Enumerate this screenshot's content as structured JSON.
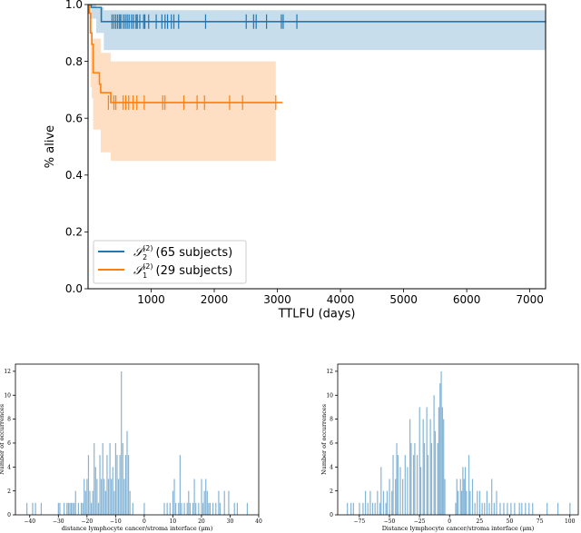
{
  "chart_data": [
    {
      "type": "line",
      "subtype": "kaplan-meier",
      "xlabel": "TTLFU (days)",
      "ylabel": "% alive",
      "xlim": [
        0,
        7250
      ],
      "ylim": [
        0,
        1
      ],
      "xticks": [
        1000,
        2000,
        3000,
        4000,
        5000,
        6000,
        7000
      ],
      "yticks": [
        0.0,
        0.2,
        0.4,
        0.6,
        0.8,
        1.0
      ],
      "legend_placement": "lower-left",
      "series": [
        {
          "name": "𝒮₂⁽²⁾ (65 subjects)",
          "symbol": "𝒮",
          "sub": "2",
          "sup": "(2)",
          "text": "(65 subjects)",
          "color": "#1f77b4",
          "steps": [
            [
              0,
              1.0
            ],
            [
              50,
              0.99
            ],
            [
              210,
              0.94
            ],
            [
              7250,
              0.94
            ]
          ],
          "ci": [
            [
              0,
              1.0,
              1.0
            ],
            [
              50,
              1.0,
              0.95
            ],
            [
              130,
              0.99,
              0.9
            ],
            [
              250,
              0.98,
              0.84
            ],
            [
              7250,
              0.98,
              0.84
            ]
          ],
          "censored": [
            380,
            410,
            440,
            470,
            500,
            520,
            560,
            590,
            620,
            650,
            690,
            720,
            760,
            780,
            820,
            880,
            900,
            960,
            1080,
            1170,
            1220,
            1260,
            1320,
            1360,
            1435,
            1862,
            2506,
            2623,
            2664,
            2828,
            3063,
            3092,
            3309
          ]
        },
        {
          "name": "𝒮₁⁽²⁾ (29 subjects)",
          "symbol": "𝒮",
          "sub": "1",
          "sup": "(2)",
          "text": "(29 subjects)",
          "color": "#ff7f0e",
          "steps": [
            [
              0,
              1.0
            ],
            [
              20,
              0.97
            ],
            [
              40,
              0.9
            ],
            [
              60,
              0.86
            ],
            [
              80,
              0.76
            ],
            [
              180,
              0.72
            ],
            [
              200,
              0.69
            ],
            [
              360,
              0.655
            ],
            [
              3080,
              0.655
            ]
          ],
          "ci": [
            [
              20,
              1.0,
              0.9
            ],
            [
              40,
              0.97,
              0.71
            ],
            [
              60,
              0.88,
              0.67
            ],
            [
              80,
              0.88,
              0.56
            ],
            [
              200,
              0.83,
              0.48
            ],
            [
              360,
              0.8,
              0.45
            ],
            [
              2975,
              0.8,
              0.45
            ]
          ],
          "censored": [
            322,
            410,
            440,
            557,
            598,
            644,
            714,
            773,
            890,
            1183,
            1218,
            1517,
            1728,
            1845,
            2243,
            2448,
            2975
          ]
        }
      ]
    },
    {
      "type": "bar",
      "subtype": "histogram",
      "color": "#1f77b4",
      "xlabel": "distance lymphocyte  cancer/stroma interface (μm)",
      "ylabel": "Number of occurrences",
      "xlim": [
        -45,
        40
      ],
      "ylim": [
        0,
        12.6
      ],
      "xticks": [
        -40,
        -30,
        -20,
        -10,
        0,
        10,
        20,
        30,
        40
      ],
      "yticks": [
        0,
        2,
        4,
        6,
        8,
        10,
        12
      ],
      "bars": [
        [
          -41,
          1
        ],
        [
          -39,
          1
        ],
        [
          -38,
          1
        ],
        [
          -36,
          1
        ],
        [
          -30,
          1
        ],
        [
          -29.5,
          1
        ],
        [
          -28,
          1
        ],
        [
          -27,
          1
        ],
        [
          -26.5,
          1
        ],
        [
          -26,
          1
        ],
        [
          -25.5,
          1
        ],
        [
          -25,
          1
        ],
        [
          -24.5,
          1
        ],
        [
          -24,
          2
        ],
        [
          -23,
          1
        ],
        [
          -22,
          1
        ],
        [
          -21.5,
          1
        ],
        [
          -21,
          3
        ],
        [
          -20.5,
          2
        ],
        [
          -20,
          3
        ],
        [
          -19.5,
          5
        ],
        [
          -19,
          2
        ],
        [
          -18.5,
          1
        ],
        [
          -18,
          2
        ],
        [
          -17.5,
          6
        ],
        [
          -17,
          4
        ],
        [
          -16.5,
          3
        ],
        [
          -16,
          1
        ],
        [
          -15.5,
          5
        ],
        [
          -15,
          3
        ],
        [
          -14.5,
          6
        ],
        [
          -14,
          3
        ],
        [
          -13.5,
          2
        ],
        [
          -13,
          5
        ],
        [
          -12.5,
          3
        ],
        [
          -12,
          6
        ],
        [
          -11.5,
          3
        ],
        [
          -11,
          4
        ],
        [
          -10.5,
          2
        ],
        [
          -10,
          6
        ],
        [
          -9.5,
          5
        ],
        [
          -9,
          3
        ],
        [
          -8.5,
          5
        ],
        [
          -8,
          12
        ],
        [
          -7.5,
          6
        ],
        [
          -7,
          3
        ],
        [
          -6.5,
          5
        ],
        [
          -6,
          7
        ],
        [
          -5.5,
          5
        ],
        [
          -5,
          2
        ],
        [
          -4,
          1
        ],
        [
          0,
          1
        ],
        [
          7,
          1
        ],
        [
          8,
          1
        ],
        [
          9,
          1
        ],
        [
          10,
          2
        ],
        [
          10.5,
          3
        ],
        [
          11,
          1
        ],
        [
          12,
          1
        ],
        [
          12.5,
          5
        ],
        [
          13,
          1
        ],
        [
          14,
          1
        ],
        [
          15,
          1
        ],
        [
          15.5,
          2
        ],
        [
          16,
          1
        ],
        [
          17,
          1
        ],
        [
          17.5,
          3
        ],
        [
          18,
          1
        ],
        [
          19,
          1
        ],
        [
          20,
          3
        ],
        [
          20.5,
          1
        ],
        [
          21,
          2
        ],
        [
          21.5,
          3
        ],
        [
          22,
          2
        ],
        [
          22.5,
          1
        ],
        [
          23,
          1
        ],
        [
          24,
          1
        ],
        [
          25,
          1
        ],
        [
          26,
          2
        ],
        [
          26.5,
          1
        ],
        [
          28,
          2
        ],
        [
          29.5,
          2
        ],
        [
          31.5,
          1
        ],
        [
          32.5,
          1
        ],
        [
          36,
          1
        ]
      ]
    },
    {
      "type": "bar",
      "subtype": "histogram",
      "color": "#1f77b4",
      "xlabel": "Distance lymphocyte  cancer/stroma interface (μm)",
      "ylabel": "Number of occurrences",
      "xlim": [
        -93,
        107
      ],
      "ylim": [
        0,
        12.6
      ],
      "xticks": [
        -75,
        -50,
        -25,
        0,
        25,
        50,
        75,
        100
      ],
      "yticks": [
        0,
        2,
        4,
        6,
        8,
        10,
        12
      ],
      "bars": [
        [
          -85,
          1
        ],
        [
          -82,
          1
        ],
        [
          -80,
          1
        ],
        [
          -75,
          1
        ],
        [
          -72,
          1
        ],
        [
          -70,
          2
        ],
        [
          -68,
          1
        ],
        [
          -66,
          2
        ],
        [
          -64,
          1
        ],
        [
          -62,
          1
        ],
        [
          -60,
          2
        ],
        [
          -58,
          1
        ],
        [
          -57,
          4
        ],
        [
          -55,
          2
        ],
        [
          -53,
          1
        ],
        [
          -52,
          2
        ],
        [
          -50,
          3
        ],
        [
          -48,
          2
        ],
        [
          -47,
          5
        ],
        [
          -45,
          3
        ],
        [
          -44,
          6
        ],
        [
          -43,
          5
        ],
        [
          -41,
          4
        ],
        [
          -39,
          3
        ],
        [
          -37,
          5
        ],
        [
          -35,
          4
        ],
        [
          -33,
          8
        ],
        [
          -32,
          6
        ],
        [
          -30,
          5
        ],
        [
          -29,
          6
        ],
        [
          -27,
          5
        ],
        [
          -25,
          9
        ],
        [
          -24,
          4
        ],
        [
          -22,
          8
        ],
        [
          -21,
          6
        ],
        [
          -19,
          9
        ],
        [
          -18,
          5
        ],
        [
          -16,
          8
        ],
        [
          -15,
          6
        ],
        [
          -13,
          10
        ],
        [
          -12,
          7
        ],
        [
          -10,
          6
        ],
        [
          -9,
          9
        ],
        [
          -8,
          11
        ],
        [
          -7,
          12
        ],
        [
          -6,
          9
        ],
        [
          -5,
          8
        ],
        [
          -4,
          3
        ],
        [
          5,
          1
        ],
        [
          6,
          3
        ],
        [
          7,
          2
        ],
        [
          9,
          3
        ],
        [
          10,
          2
        ],
        [
          11,
          4
        ],
        [
          12,
          3
        ],
        [
          13,
          4
        ],
        [
          14,
          2
        ],
        [
          16,
          5
        ],
        [
          17,
          2
        ],
        [
          19,
          3
        ],
        [
          21,
          1
        ],
        [
          23,
          2
        ],
        [
          25,
          2
        ],
        [
          27,
          1
        ],
        [
          29,
          1
        ],
        [
          31,
          2
        ],
        [
          33,
          1
        ],
        [
          35,
          3
        ],
        [
          37,
          1
        ],
        [
          39,
          2
        ],
        [
          42,
          1
        ],
        [
          45,
          1
        ],
        [
          48,
          1
        ],
        [
          51,
          1
        ],
        [
          54,
          1
        ],
        [
          58,
          1
        ],
        [
          60,
          1
        ],
        [
          63,
          1
        ],
        [
          66,
          1
        ],
        [
          69,
          1
        ],
        [
          81,
          1
        ],
        [
          90,
          1
        ],
        [
          100,
          1
        ]
      ]
    }
  ]
}
